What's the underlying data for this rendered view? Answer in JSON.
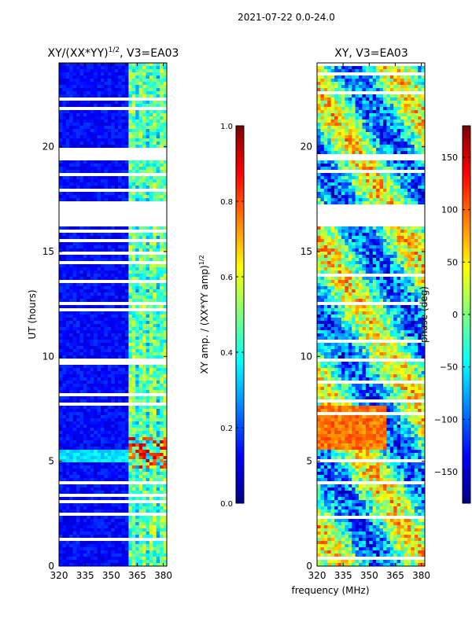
{
  "suptitle": "2021-07-22 0.0-24.0",
  "shared_xlabel": "frequency (MHz)",
  "colors": {
    "jet": [
      "#00007f",
      "#0000ff",
      "#007fff",
      "#00ffff",
      "#7fff7f",
      "#ffff00",
      "#ff7f00",
      "#ff0000",
      "#7f0000"
    ],
    "gap": "#ffffff",
    "frame": "#000000"
  },
  "chart_data": [
    {
      "type": "heatmap",
      "panel": "left",
      "title_main": "XY/(XX*YY)",
      "title_sup": "1/2",
      "title_rest": ", V3=EA03",
      "xlabel": "",
      "ylabel": "UT (hours)",
      "xlim": [
        320,
        382
      ],
      "ylim": [
        0,
        24
      ],
      "xticks": [
        320,
        335,
        350,
        365,
        380
      ],
      "yticks": [
        0,
        5,
        10,
        15,
        20
      ],
      "xtick_labels": [
        "320",
        "335",
        "350",
        "365",
        "380"
      ],
      "ytick_labels": [
        "0",
        "5",
        "10",
        "15",
        "20"
      ],
      "value_range": [
        0,
        1
      ],
      "colorbar": {
        "label_main": "XY amp. / (XX*YY amp)",
        "label_sup": "1/2",
        "ticks": [
          0.0,
          0.2,
          0.4,
          0.6,
          0.8,
          1.0
        ],
        "tick_labels": [
          "0.0",
          "0.2",
          "0.4",
          "0.6",
          "0.8",
          "1.0"
        ],
        "range": [
          0,
          1
        ]
      },
      "flagged_time_blocks_hours": [
        [
          16.2,
          17.2
        ],
        [
          19.3,
          19.7
        ]
      ],
      "high_amplitude_band_mhz": [
        360,
        382
      ]
    },
    {
      "type": "heatmap",
      "panel": "right",
      "title": "XY, V3=EA03",
      "xlabel": "frequency (MHz)",
      "ylabel": "",
      "xlim": [
        320,
        382
      ],
      "ylim": [
        0,
        24
      ],
      "xticks": [
        320,
        335,
        350,
        365,
        380
      ],
      "yticks": [
        0,
        5,
        10,
        15,
        20
      ],
      "xtick_labels": [
        "320",
        "335",
        "350",
        "365",
        "380"
      ],
      "ytick_labels": [
        "0",
        "5",
        "10",
        "15",
        "20"
      ],
      "value_range": [
        -180,
        180
      ],
      "colorbar": {
        "label": "phase (deg)",
        "ticks": [
          -150,
          -100,
          -50,
          0,
          50,
          100,
          150
        ],
        "tick_labels": [
          "−150",
          "−100",
          "−50",
          "0",
          "50",
          "100",
          "150"
        ],
        "range": [
          -180,
          180
        ]
      },
      "flagged_time_blocks_hours": [
        [
          16.2,
          17.2
        ],
        [
          19.3,
          19.7
        ]
      ]
    }
  ]
}
